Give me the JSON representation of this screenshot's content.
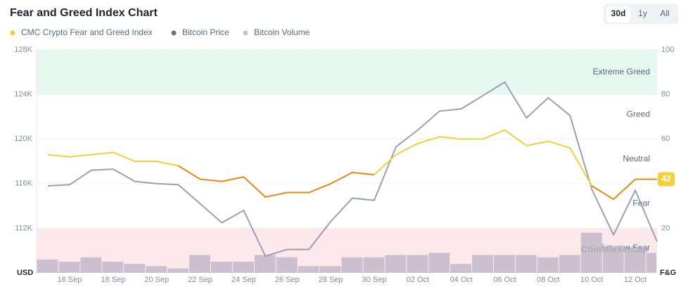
{
  "chart_data": {
    "type": "line",
    "title": "Fear and Greed Index Chart",
    "range_buttons": [
      "30d",
      "1y",
      "All"
    ],
    "active_button": 0,
    "categories": [
      null,
      "16 Sep",
      null,
      "18 Sep",
      null,
      "20 Sep",
      null,
      "22 Sep",
      null,
      "24 Sep",
      null,
      "26 Sep",
      null,
      "28 Sep",
      null,
      "30 Sep",
      null,
      "02 Oct",
      null,
      "04 Oct",
      null,
      "06 Oct",
      null,
      "08 Oct",
      null,
      "10 Oct",
      null,
      "12 Oct",
      null
    ],
    "series": [
      {
        "name": "CMC Crypto Fear and Greed Index",
        "color": "#f4cf3b",
        "axis": "y2",
        "values": [
          53,
          52,
          53,
          54,
          50,
          50,
          48,
          42,
          41,
          43,
          34,
          36,
          36,
          40,
          45,
          44,
          53,
          58,
          61,
          60,
          60,
          64,
          57,
          59,
          56,
          39,
          33,
          42,
          42
        ]
      },
      {
        "name": "Bitcoin Price",
        "color": "#9aa0ad",
        "values": [
          115800,
          115900,
          117200,
          117300,
          116200,
          116000,
          115900,
          114200,
          112500,
          113600,
          109500,
          110100,
          110100,
          112600,
          114700,
          114500,
          119300,
          120800,
          122500,
          122700,
          123900,
          125100,
          121900,
          123700,
          122100,
          115500,
          111400,
          115400,
          110800
        ]
      },
      {
        "name": "Bitcoin Volume",
        "color": "#cbbfd0",
        "axis": "y3",
        "values": [
          6,
          5,
          7,
          5,
          4,
          3,
          2,
          8,
          5,
          5,
          8,
          7,
          3,
          3,
          7,
          7,
          8,
          8,
          9,
          4,
          8,
          8,
          8,
          7,
          8,
          18,
          12,
          11,
          9
        ]
      }
    ],
    "legend_colors": [
      "#f4cf3b",
      "#6d7282",
      "#cbbfd0"
    ],
    "level_colors": [
      {
        "min": 0,
        "color": "#e8870e"
      },
      {
        "min": 46,
        "color": "#f4cf3b"
      },
      {
        "min": 63,
        "color": "#8fd14f"
      }
    ],
    "ylim": [
      108000,
      128000
    ],
    "yticks": [
      {
        "value": 112000,
        "label": "112K"
      },
      {
        "value": 116000,
        "label": "116K"
      },
      {
        "value": 120000,
        "label": "120K"
      },
      {
        "value": 124000,
        "label": "124K"
      },
      {
        "value": 128000,
        "label": "128K"
      }
    ],
    "y2lim": [
      0,
      100
    ],
    "y2ticks": [
      20,
      40,
      60,
      80,
      100
    ],
    "y3lim": [
      0,
      100
    ],
    "ylabel": "USD",
    "y2label": "F&G",
    "bands": [
      {
        "range": [
          80,
          100
        ],
        "color": "#e7f8f1"
      },
      {
        "range": [
          0,
          20
        ],
        "color": "#fde9ec"
      }
    ],
    "zone_labels": [
      {
        "label": "Extreme Greed",
        "value": 90
      },
      {
        "label": "Greed",
        "value": 71
      },
      {
        "label": "Neutral",
        "value": 51
      },
      {
        "label": "Fear",
        "value": 31
      },
      {
        "label": "Extreme Fear",
        "value": 11
      }
    ],
    "watermark": "CoinMarketCap",
    "grid": true
  }
}
